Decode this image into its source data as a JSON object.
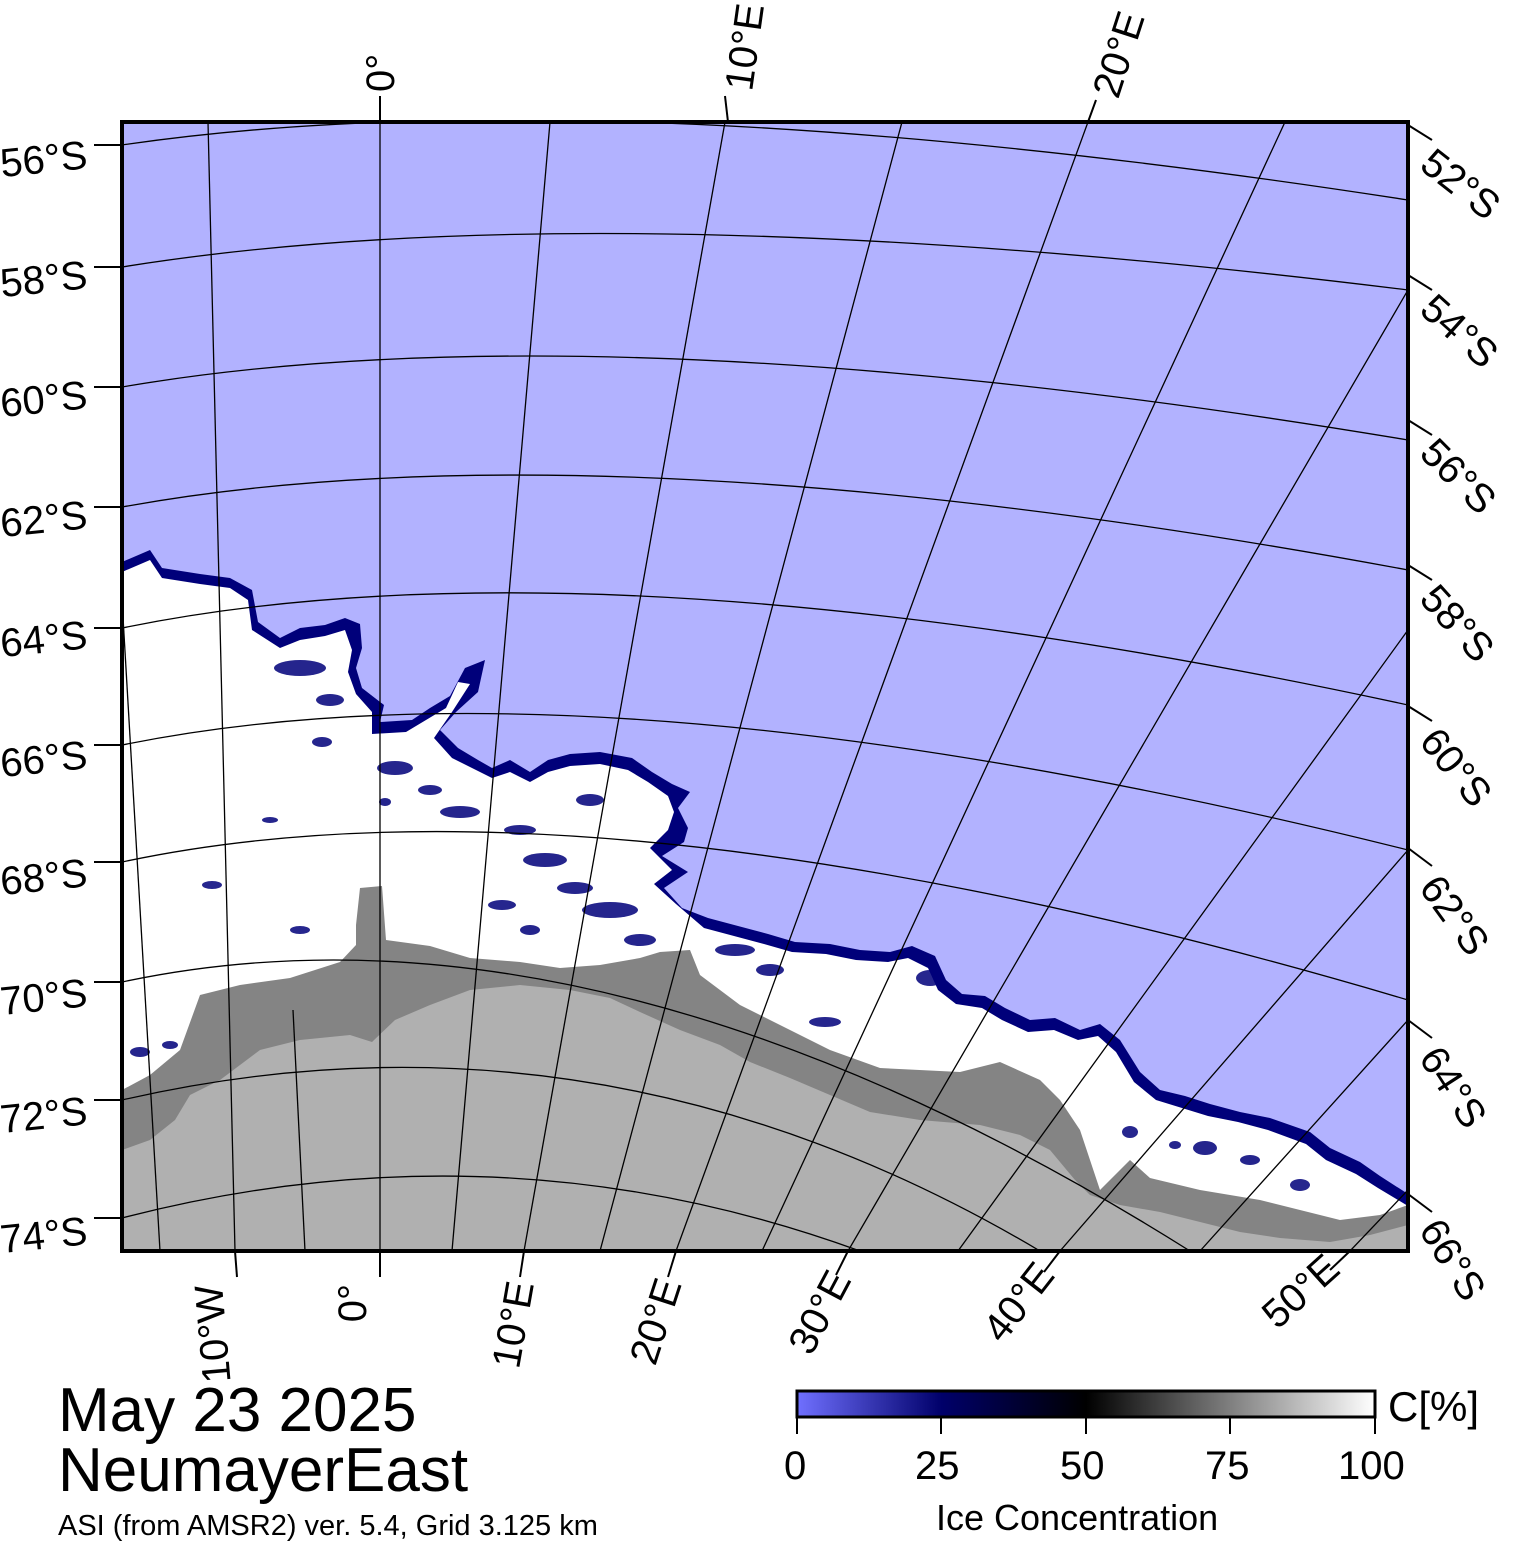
{
  "map": {
    "lat_labels_left": [
      "56°S",
      "58°S",
      "60°S",
      "62°S",
      "64°S",
      "66°S",
      "68°S",
      "70°S",
      "72°S",
      "74°S"
    ],
    "lat_labels_right": [
      "52°S",
      "54°S",
      "56°S",
      "58°S",
      "60°S",
      "62°S",
      "64°S",
      "66°S"
    ],
    "lon_labels_top": [
      "0°",
      "10°E",
      "20°E"
    ],
    "lon_labels_bottom": [
      "10°W",
      "0°",
      "10°E",
      "20°E",
      "30°E",
      "40°E",
      "50°E"
    ],
    "colors": {
      "open_water": "#b2b2ff",
      "land_ice_shelf": "#848484",
      "land": "#b0b0b0",
      "sea_ice": "#ffffff",
      "ice_edge": "#00007a",
      "grid": "#000000"
    }
  },
  "title": {
    "date": "May 23 2025",
    "region": "NeumayerEast",
    "subtitle": "ASI (from AMSR2) ver. 5.4,  Grid 3.125 km"
  },
  "colorbar": {
    "unit": "C[%]",
    "ticks": [
      "0",
      "25",
      "50",
      "75",
      "100"
    ],
    "title": "Ice Concentration",
    "stops": [
      "#7070ff",
      "#00006a",
      "#000000",
      "#ffffff"
    ]
  }
}
